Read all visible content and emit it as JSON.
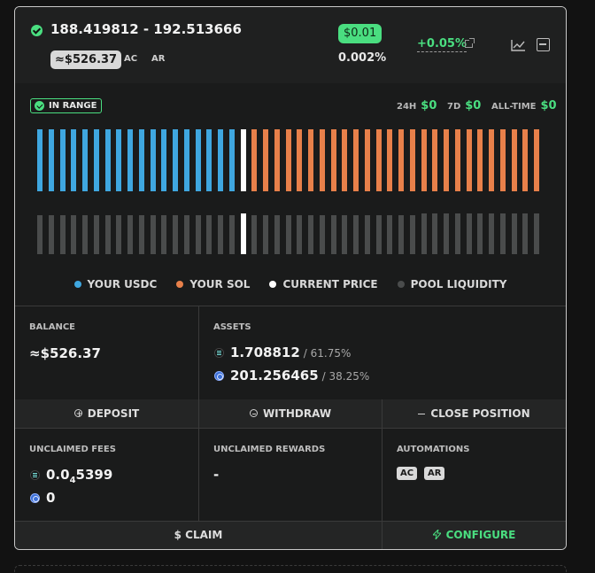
{
  "header": {
    "price_range": "188.419812  -  192.513666",
    "value": "≈$526.37",
    "tag_ac": "AC",
    "tag_ar": "AR",
    "fee_amount": "$0.01",
    "fee_percent": "0.002%",
    "change": "+0.05%",
    "icons": [
      "check-circle-icon",
      "external-link-icon",
      "chart-icon",
      "minimize-icon"
    ]
  },
  "range": {
    "status": "IN RANGE",
    "stats": [
      {
        "label": "24H",
        "value": "$0"
      },
      {
        "label": "7D",
        "value": "$0"
      },
      {
        "label": "ALL-TIME",
        "value": "$0"
      }
    ]
  },
  "legend": [
    {
      "label": "YOUR USDC",
      "color": "#3fa7e0"
    },
    {
      "label": "YOUR SOL",
      "color": "#e8804a"
    },
    {
      "label": "CURRENT PRICE",
      "color": "#ffffff"
    },
    {
      "label": "POOL LIQUIDITY",
      "color": "#4a4c4c"
    }
  ],
  "chart_data": {
    "type": "bar",
    "position_bars": {
      "usdc_count": 18,
      "current_count": 1,
      "sol_count": 26
    },
    "pool_liquidity": [
      0.95,
      0.95,
      0.95,
      0.95,
      0.95,
      0.95,
      0.95,
      0.95,
      0.95,
      0.95,
      0.95,
      0.95,
      0.95,
      0.95,
      0.95,
      0.95,
      0.95,
      0.95,
      1.0,
      0.95,
      0.95,
      0.95,
      0.95,
      0.95,
      0.95,
      0.95,
      0.95,
      0.95,
      0.95,
      0.95,
      0.95,
      0.95,
      0.95,
      0.95,
      1.0,
      1.0,
      1.0,
      1.0,
      1.0,
      1.0,
      1.0,
      1.0,
      1.0,
      1.0,
      1.0
    ]
  },
  "balance": {
    "label": "BALANCE",
    "value": "≈$526.37"
  },
  "assets": {
    "label": "ASSETS",
    "sol_amount": "1.708812",
    "sol_share": "/ 61.75%",
    "usdc_amount": "201.256465",
    "usdc_share": "/ 38.25%"
  },
  "actions": {
    "deposit": "DEPOSIT",
    "withdraw": "WITHDRAW",
    "close": "CLOSE POSITION"
  },
  "fees": {
    "label": "UNCLAIMED FEES",
    "sol_prefix": "0.0",
    "sol_sub": "4",
    "sol_suffix": "5399",
    "usdc": "0"
  },
  "rewards": {
    "label": "UNCLAIMED REWARDS",
    "value": "-"
  },
  "automations": {
    "label": "AUTOMATIONS",
    "tag_ac": "AC",
    "tag_ar": "AR"
  },
  "footer": {
    "claim": "$ CLAIM",
    "configure": "CONFIGURE"
  }
}
